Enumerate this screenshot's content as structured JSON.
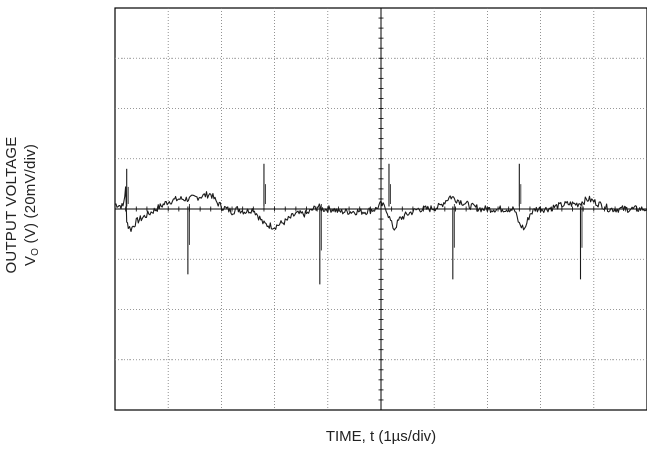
{
  "chart_data": {
    "type": "line",
    "title": "",
    "xlabel": "TIME, t (1µs/div)",
    "ylabel_line1": "OUTPUT VOLTAGE",
    "ylabel_line2_prefix": "V",
    "ylabel_line2_sub": "O",
    "ylabel_line2_suffix": " (V) (20mV/div)",
    "x_divisions": 10,
    "y_divisions": 8,
    "xlim": [
      0,
      10
    ],
    "ylim": [
      -4,
      4
    ],
    "grid": true,
    "trace_color": "#1a1a1a",
    "x": [
      0.0,
      0.15,
      0.2,
      0.22,
      0.25,
      0.3,
      0.4,
      0.55,
      0.7,
      0.85,
      1.0,
      1.2,
      1.4,
      1.6,
      1.8,
      1.9,
      2.0,
      2.1,
      2.2,
      2.3,
      2.45,
      2.6,
      2.8,
      3.0,
      3.2,
      3.4,
      3.6,
      3.8,
      3.9,
      4.0,
      4.1,
      4.2,
      4.3,
      4.5,
      4.7,
      4.9,
      5.0,
      5.1,
      5.2,
      5.25,
      5.35,
      5.5,
      5.7,
      5.9,
      6.1,
      6.3,
      6.5,
      6.7,
      6.9,
      7.1,
      7.3,
      7.5,
      7.6,
      7.7,
      7.8,
      7.9,
      8.1,
      8.3,
      8.5,
      8.7,
      8.9,
      9.1,
      9.3,
      9.5,
      9.7,
      9.9,
      10.0
    ],
    "values": [
      0.1,
      0.05,
      0.4,
      -0.2,
      -0.35,
      -0.4,
      -0.25,
      -0.15,
      -0.05,
      0.05,
      0.15,
      0.2,
      0.2,
      0.25,
      0.3,
      0.15,
      0.05,
      0.0,
      -0.05,
      0.0,
      -0.05,
      0.0,
      -0.3,
      -0.35,
      -0.25,
      -0.1,
      -0.1,
      0.05,
      0.0,
      0.0,
      0.0,
      -0.05,
      -0.05,
      -0.05,
      -0.05,
      0.0,
      0.1,
      0.0,
      -0.3,
      -0.4,
      -0.2,
      -0.1,
      0.0,
      0.0,
      0.05,
      0.25,
      0.15,
      0.05,
      0.0,
      0.0,
      0.0,
      0.0,
      -0.3,
      -0.4,
      -0.1,
      0.0,
      0.0,
      0.05,
      0.1,
      0.1,
      0.2,
      0.1,
      0.0,
      0.0,
      0.0,
      0.0,
      0.0
    ],
    "spikes": [
      {
        "x": 0.22,
        "y": 0.8
      },
      {
        "x": 1.37,
        "y": -1.3
      },
      {
        "x": 2.8,
        "y": 0.9
      },
      {
        "x": 3.85,
        "y": -1.5
      },
      {
        "x": 5.15,
        "y": 0.9
      },
      {
        "x": 6.35,
        "y": -1.4
      },
      {
        "x": 7.6,
        "y": 0.9
      },
      {
        "x": 8.75,
        "y": -1.4
      }
    ]
  }
}
